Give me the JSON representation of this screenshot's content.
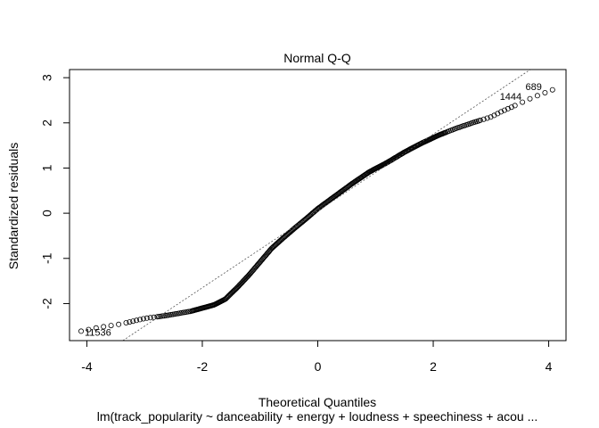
{
  "chart_data": {
    "type": "scatter",
    "title": "Normal Q-Q",
    "xlabel": "Theoretical Quantiles",
    "ylabel": "Standardized residuals",
    "subtitle": "lm(track_popularity ~ danceability + energy + loudness + speechiness + acou ...",
    "xlim": [
      -4.3,
      4.3
    ],
    "ylim": [
      -2.82,
      3.18
    ],
    "x_ticks": [
      -4,
      -2,
      0,
      2,
      4
    ],
    "x_tick_labels": [
      "-4",
      "-2",
      "0",
      "2",
      "4"
    ],
    "y_ticks": [
      -2,
      -1,
      0,
      1,
      2,
      3
    ],
    "y_tick_labels": [
      "-2",
      "-1",
      "0",
      "1",
      "2",
      "3"
    ],
    "grid": false,
    "reference_line": {
      "slope": 0.85,
      "intercept": 0.05
    },
    "curve_knots": [
      [
        -4.1,
        -2.61
      ],
      [
        -3.8,
        -2.53
      ],
      [
        -3.4,
        -2.45
      ],
      [
        -3.0,
        -2.33
      ],
      [
        -2.6,
        -2.26
      ],
      [
        -2.2,
        -2.17
      ],
      [
        -2.0,
        -2.1
      ],
      [
        -1.8,
        -2.03
      ],
      [
        -1.6,
        -1.9
      ],
      [
        -1.4,
        -1.65
      ],
      [
        -1.2,
        -1.38
      ],
      [
        -1.0,
        -1.08
      ],
      [
        -0.8,
        -0.78
      ],
      [
        -0.6,
        -0.55
      ],
      [
        -0.4,
        -0.33
      ],
      [
        -0.2,
        -0.12
      ],
      [
        0.0,
        0.1
      ],
      [
        0.3,
        0.38
      ],
      [
        0.6,
        0.66
      ],
      [
        0.9,
        0.92
      ],
      [
        1.2,
        1.12
      ],
      [
        1.5,
        1.35
      ],
      [
        1.8,
        1.55
      ],
      [
        2.1,
        1.73
      ],
      [
        2.4,
        1.88
      ],
      [
        2.7,
        2.01
      ],
      [
        3.0,
        2.13
      ],
      [
        3.2,
        2.26
      ],
      [
        3.5,
        2.43
      ],
      [
        3.7,
        2.55
      ],
      [
        4.1,
        2.75
      ]
    ],
    "highlighted_points": [
      {
        "label": "11536",
        "x": -4.1,
        "y": -2.61,
        "pos": "right"
      },
      {
        "label": "1444",
        "x": 3.5,
        "y": 2.45,
        "pos": "left"
      },
      {
        "label": "689",
        "x": 3.85,
        "y": 2.67,
        "pos": "left"
      }
    ]
  }
}
